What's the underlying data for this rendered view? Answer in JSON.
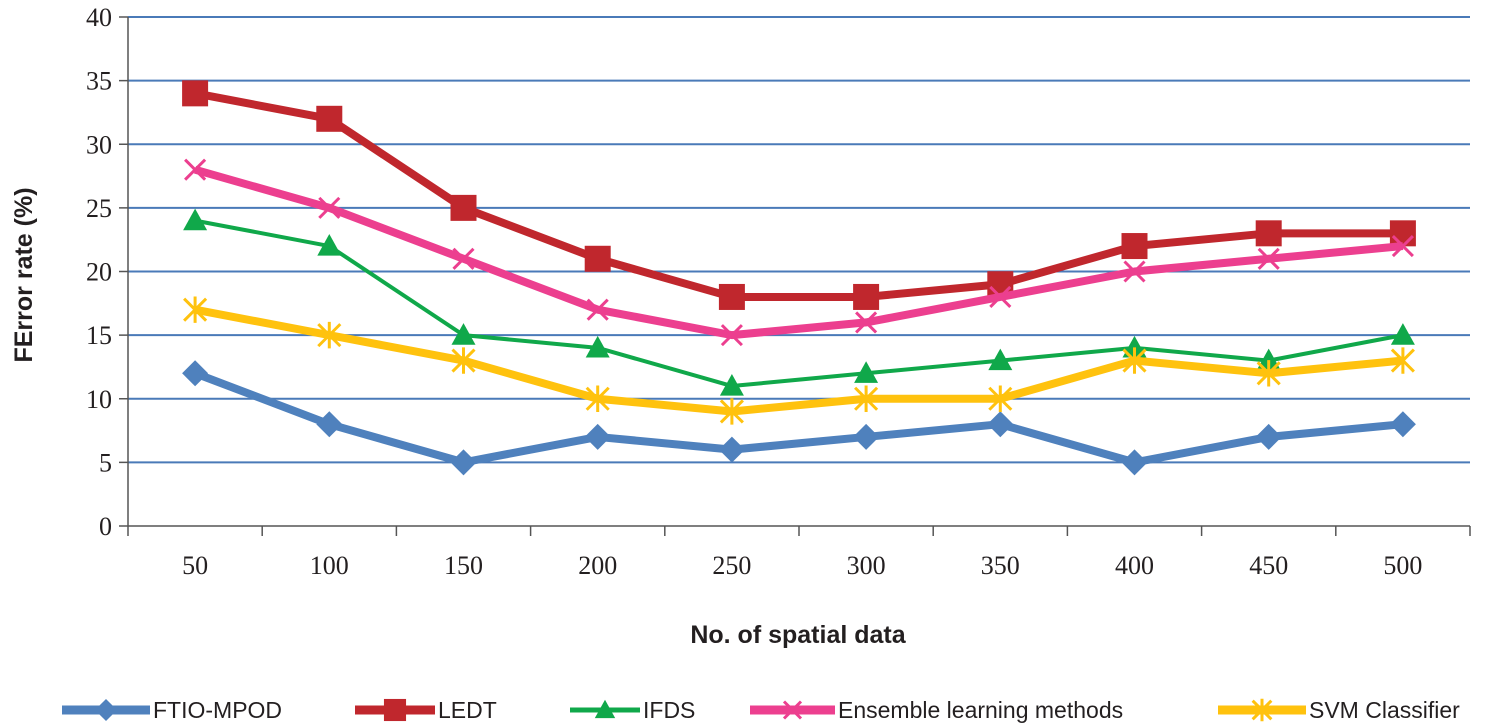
{
  "chart_data": {
    "type": "line",
    "title": "",
    "xlabel": "No. of spatial data",
    "ylabel": "FError rate (%)",
    "categories": [
      "50",
      "100",
      "150",
      "200",
      "250",
      "300",
      "350",
      "400",
      "450",
      "500"
    ],
    "ylim": [
      0,
      40
    ],
    "yticks": [
      "0",
      "5",
      "10",
      "15",
      "20",
      "25",
      "30",
      "35",
      "40"
    ],
    "grid": "horizontal",
    "legend_position": "bottom",
    "series": [
      {
        "name": "FTIO-MPOD",
        "color": "#4f81bd",
        "marker": "diamond",
        "values": [
          12,
          8,
          5,
          7,
          6,
          7,
          8,
          5,
          7,
          8
        ]
      },
      {
        "name": "LEDT",
        "color": "#c0272d",
        "marker": "square",
        "values": [
          34,
          32,
          25,
          21,
          18,
          18,
          19,
          22,
          23,
          23
        ]
      },
      {
        "name": "IFDS",
        "color": "#10a84a",
        "marker": "triangle",
        "values": [
          24,
          22,
          15,
          14,
          11,
          12,
          13,
          14,
          13,
          15
        ]
      },
      {
        "name": "Ensemble learning methods",
        "color": "#ec3f8f",
        "marker": "x",
        "values": [
          28,
          25,
          21,
          17,
          15,
          16,
          18,
          20,
          21,
          22
        ]
      },
      {
        "name": "SVM Classifier",
        "color": "#ffc20e",
        "marker": "star",
        "values": [
          17,
          15,
          13,
          10,
          9,
          10,
          10,
          13,
          12,
          13
        ]
      }
    ]
  }
}
